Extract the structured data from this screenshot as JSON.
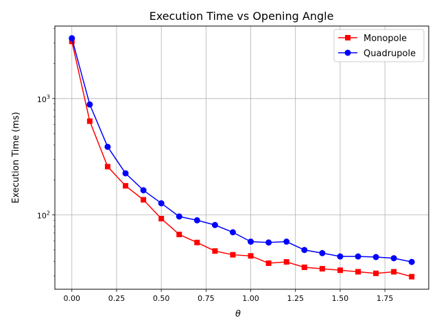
{
  "chart_data": {
    "type": "line",
    "title": "Execution Time vs Opening Angle",
    "xlabel": "θ",
    "ylabel": "Execution Time (ms)",
    "xlim": [
      -0.095,
      1.995
    ],
    "ylim": [
      23,
      4200
    ],
    "yscale": "log",
    "grid": true,
    "legend_position": "top-right",
    "x_ticks": [
      0.0,
      0.25,
      0.5,
      0.75,
      1.0,
      1.25,
      1.5,
      1.75
    ],
    "x_tick_labels": [
      "0.00",
      "0.25",
      "0.50",
      "0.75",
      "1.00",
      "1.25",
      "1.50",
      "1.75"
    ],
    "y_major_ticks": [
      100,
      1000
    ],
    "y_tick_labels": [
      {
        "base": "10",
        "exp": "2"
      },
      {
        "base": "10",
        "exp": "3"
      }
    ],
    "x": [
      0.0,
      0.1,
      0.2,
      0.3,
      0.4,
      0.5,
      0.6,
      0.7,
      0.8,
      0.9,
      1.0,
      1.1,
      1.2,
      1.3,
      1.4,
      1.5,
      1.6,
      1.7,
      1.8,
      1.9
    ],
    "series": [
      {
        "name": "Monopole",
        "color": "#ff0000",
        "marker": "square",
        "values": [
          3100,
          640,
          260,
          178,
          135,
          93,
          68,
          58,
          49,
          45.5,
          44.5,
          38.5,
          39.5,
          35.5,
          34.5,
          33.5,
          32.5,
          31.5,
          32.5,
          29.5
        ]
      },
      {
        "name": "Quadrupole",
        "color": "#0000ff",
        "marker": "circle",
        "values": [
          3300,
          890,
          385,
          228,
          163,
          126,
          97,
          90,
          82,
          71,
          59,
          58,
          59,
          50,
          47,
          44,
          44,
          43.5,
          42.5,
          39.5
        ]
      }
    ]
  }
}
